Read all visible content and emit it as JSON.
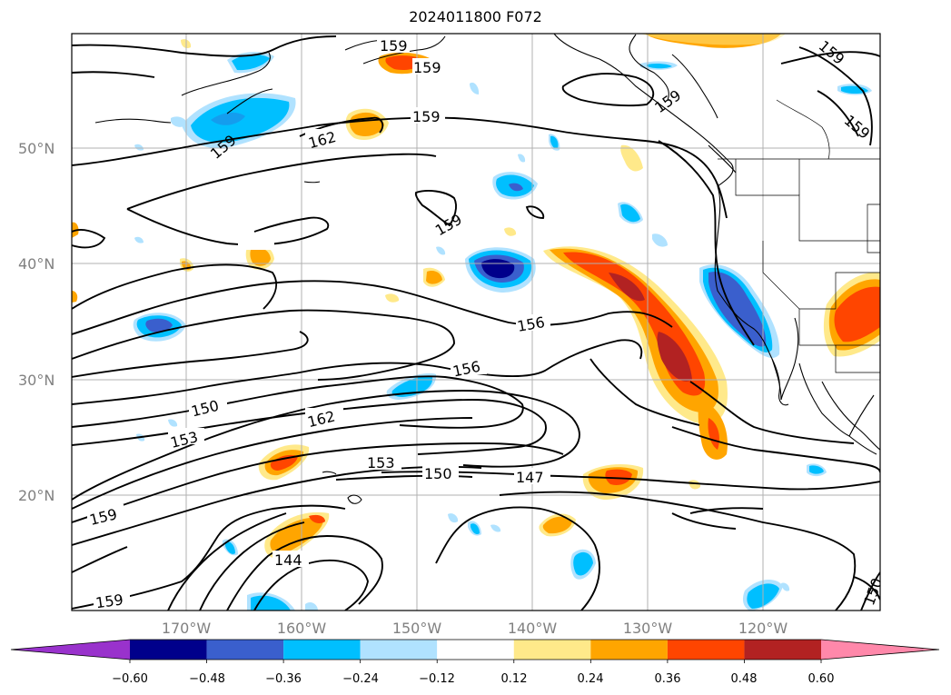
{
  "title": "2024011800 F072",
  "lat_labels": [
    "50°N",
    "40°N",
    "30°N",
    "20°N"
  ],
  "lon_labels": [
    "170°W",
    "160°W",
    "150°W",
    "140°W",
    "130°W",
    "120°W"
  ],
  "contour_labels": [
    "159",
    "159",
    "159",
    "159",
    "159",
    "162",
    "159",
    "159",
    "159",
    "156",
    "156",
    "150",
    "162",
    "153",
    "153",
    "150",
    "147",
    "159",
    "144",
    "159",
    "150"
  ],
  "colorbar": {
    "ticks": [
      "−0.60",
      "−0.48",
      "−0.36",
      "−0.24",
      "−0.12",
      "0.12",
      "0.24",
      "0.36",
      "0.48",
      "0.60"
    ],
    "colors": [
      "#9932cc",
      "#00008b",
      "#3a5fcd",
      "#00bfff",
      "#b0e2ff",
      "#ffffff",
      "#ffe98a",
      "#ffa500",
      "#ff4500",
      "#b22222",
      "#ff88aa"
    ]
  }
}
